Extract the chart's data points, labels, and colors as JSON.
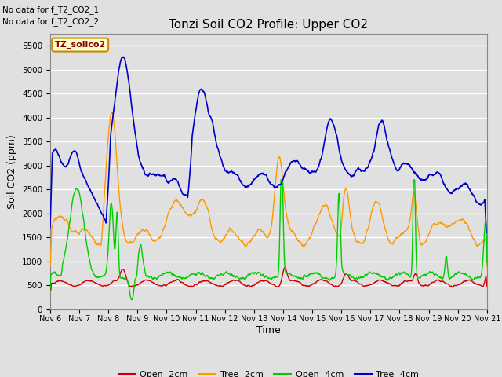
{
  "title": "Tonzi Soil CO2 Profile: Upper CO2",
  "xlabel": "Time",
  "ylabel": "Soil CO2 (ppm)",
  "ylim": [
    0,
    5750
  ],
  "yticks": [
    0,
    500,
    1000,
    1500,
    2000,
    2500,
    3000,
    3500,
    4000,
    4500,
    5000,
    5500
  ],
  "background_color": "#e0e0e0",
  "plot_bg_color": "#e0e0e0",
  "grid_color": "white",
  "no_data_text": [
    "No data for f_T2_CO2_1",
    "No data for f_T2_CO2_2"
  ],
  "legend_label_text": "TZ_soilco2",
  "legend_label_bg": "#ffffcc",
  "legend_label_border": "#cc8800",
  "series_labels": [
    "Open -2cm",
    "Tree -2cm",
    "Open -4cm",
    "Tree -4cm"
  ],
  "series_colors": [
    "#cc0000",
    "#ff9900",
    "#00cc00",
    "#0000cc"
  ],
  "x_tick_labels": [
    "Nov 6",
    "Nov 7",
    "Nov 8",
    "Nov 9",
    "Nov 10",
    "Nov 11",
    "Nov 12",
    "Nov 13",
    "Nov 14",
    "Nov 15",
    "Nov 16",
    "Nov 17",
    "Nov 18",
    "Nov 19",
    "Nov 20",
    "Nov 21"
  ],
  "num_days": 15,
  "figsize": [
    6.4,
    4.8
  ],
  "dpi": 100
}
